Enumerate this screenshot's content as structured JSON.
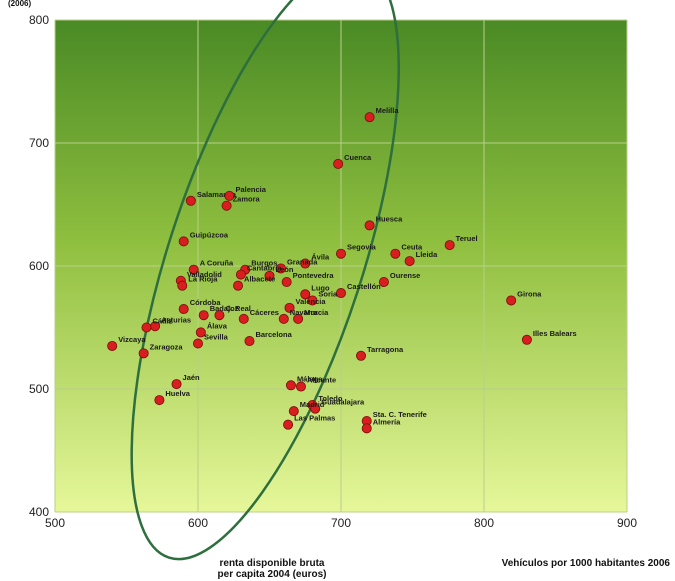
{
  "chart_data": {
    "type": "scatter",
    "title": "",
    "top_label": "(2006)",
    "xlabel": "renta disponible bruta per capita 2004 (euros)",
    "xlabel_lines": [
      "renta disponible bruta",
      "per capita 2004 (euros)"
    ],
    "ylabel": "Vehículos por 1000 habitantes 2006",
    "xlim": [
      500,
      900
    ],
    "ylim": [
      400,
      800
    ],
    "x_ticks": [
      500,
      600,
      700,
      800,
      900
    ],
    "y_ticks": [
      400,
      500,
      600,
      700,
      800
    ],
    "grid": true,
    "colors": {
      "point": "#d81e1e",
      "point_stroke": "#7a0e0e",
      "ellipse": "#2e6f3e",
      "bg_top": "#4a8a25",
      "bg_bottom": "#e6f79a",
      "grid": "#b9cf8a"
    },
    "ellipse": {
      "center": [
        647,
        604
      ],
      "x_radius": 218,
      "y_radius": 68,
      "rotation_deg": -72
    },
    "points": [
      {
        "label": "Melilla",
        "x": 720,
        "y": 721
      },
      {
        "label": "Cuenca",
        "x": 698,
        "y": 683
      },
      {
        "label": "Salamanca",
        "x": 595,
        "y": 653
      },
      {
        "label": "Palencia",
        "x": 622,
        "y": 657
      },
      {
        "label": "Zamora",
        "x": 620,
        "y": 649
      },
      {
        "label": "Huesca",
        "x": 720,
        "y": 633
      },
      {
        "label": "Teruel",
        "x": 776,
        "y": 617
      },
      {
        "label": "Guipúzcoa",
        "x": 590,
        "y": 620
      },
      {
        "label": "Segovia",
        "x": 700,
        "y": 610
      },
      {
        "label": "Ceuta",
        "x": 738,
        "y": 610
      },
      {
        "label": "Lleida",
        "x": 748,
        "y": 604
      },
      {
        "label": "Ávila",
        "x": 675,
        "y": 602
      },
      {
        "label": "A Coruña",
        "x": 597,
        "y": 597
      },
      {
        "label": "Burgos",
        "x": 633,
        "y": 597
      },
      {
        "label": "Granada",
        "x": 658,
        "y": 598
      },
      {
        "label": "Cantabria",
        "x": 630,
        "y": 593
      },
      {
        "label": "León",
        "x": 650,
        "y": 592
      },
      {
        "label": "Pontevedra",
        "x": 662,
        "y": 587
      },
      {
        "label": "Ourense",
        "x": 730,
        "y": 587
      },
      {
        "label": "Valladolid",
        "x": 588,
        "y": 588
      },
      {
        "label": "La Rioja",
        "x": 589,
        "y": 584
      },
      {
        "label": "Albacete",
        "x": 628,
        "y": 584
      },
      {
        "label": "Lugo",
        "x": 675,
        "y": 577
      },
      {
        "label": "Castellón",
        "x": 700,
        "y": 578
      },
      {
        "label": "Soria",
        "x": 680,
        "y": 572
      },
      {
        "label": "Girona",
        "x": 819,
        "y": 572
      },
      {
        "label": "Córdoba",
        "x": 590,
        "y": 565
      },
      {
        "label": "Badajoz",
        "x": 604,
        "y": 560
      },
      {
        "label": "C. Real",
        "x": 615,
        "y": 560
      },
      {
        "label": "Cáceres",
        "x": 632,
        "y": 557
      },
      {
        "label": "Valencia",
        "x": 664,
        "y": 566
      },
      {
        "label": "Murcia",
        "x": 670,
        "y": 557
      },
      {
        "label": "Navarra",
        "x": 660,
        "y": 557
      },
      {
        "label": "Asturias",
        "x": 570,
        "y": 551
      },
      {
        "label": "Cádiz",
        "x": 564,
        "y": 550
      },
      {
        "label": "Álava",
        "x": 602,
        "y": 546
      },
      {
        "label": "Barcelona",
        "x": 636,
        "y": 539
      },
      {
        "label": "Sevilla",
        "x": 600,
        "y": 537
      },
      {
        "label": "Vizcaya",
        "x": 540,
        "y": 535
      },
      {
        "label": "Illes Balears",
        "x": 830,
        "y": 540
      },
      {
        "label": "Zaragoza",
        "x": 562,
        "y": 529
      },
      {
        "label": "Tarragona",
        "x": 714,
        "y": 527
      },
      {
        "label": "Jaén",
        "x": 585,
        "y": 504
      },
      {
        "label": "Málaga",
        "x": 665,
        "y": 503
      },
      {
        "label": "Alicante",
        "x": 672,
        "y": 502
      },
      {
        "label": "Huelva",
        "x": 573,
        "y": 491
      },
      {
        "label": "Toledo",
        "x": 680,
        "y": 487
      },
      {
        "label": "Guadalajara",
        "x": 682,
        "y": 484
      },
      {
        "label": "Madrid",
        "x": 667,
        "y": 482
      },
      {
        "label": "Sta. C. Tenerife",
        "x": 718,
        "y": 474
      },
      {
        "label": "Almería",
        "x": 718,
        "y": 468
      },
      {
        "label": "Las Palmas",
        "x": 663,
        "y": 471
      }
    ]
  }
}
